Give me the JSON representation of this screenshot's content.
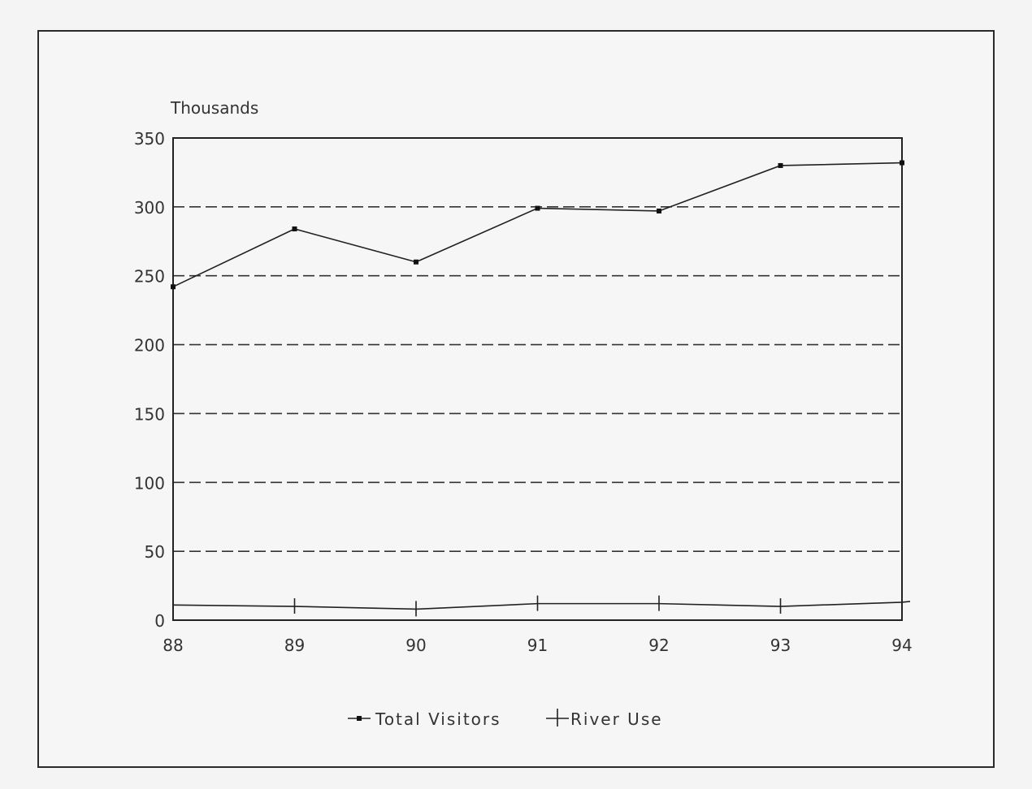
{
  "chart_data": {
    "type": "line",
    "title": "",
    "ylabel": "Thousands",
    "xlabel": "",
    "categories": [
      "88",
      "89",
      "90",
      "91",
      "92",
      "93",
      "94"
    ],
    "ylim": [
      0,
      350
    ],
    "yticks": [
      "0",
      "50",
      "100",
      "150",
      "200",
      "250",
      "300",
      "350"
    ],
    "grid": true,
    "legend_position": "bottom",
    "series": [
      {
        "name": "Total Visitors",
        "marker": "dot",
        "values": [
          242,
          284,
          260,
          299,
          297,
          330,
          332
        ]
      },
      {
        "name": "River Use",
        "marker": "plus",
        "values": [
          11,
          10,
          8,
          12,
          12,
          10,
          13
        ]
      }
    ]
  }
}
